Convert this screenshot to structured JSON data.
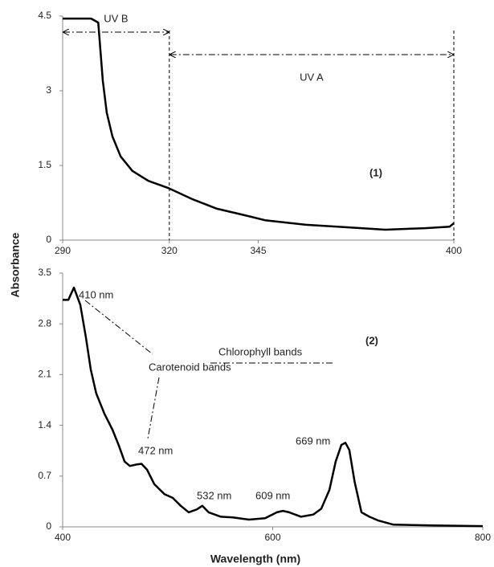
{
  "chart_data": [
    {
      "type": "line",
      "ylabel": "Absorbance",
      "color": "#000000",
      "x": [
        290,
        298,
        300,
        301.3,
        302.4,
        304,
        306.3,
        309.6,
        314.1,
        319.6,
        326.6,
        333.4,
        341.2,
        346.9,
        358.2,
        369.5,
        380.7,
        392,
        398.8,
        400
      ],
      "values": [
        4.45,
        4.45,
        4.37,
        3.2,
        2.56,
        2.08,
        1.68,
        1.39,
        1.19,
        1.05,
        0.82,
        0.63,
        0.5,
        0.4,
        0.31,
        0.26,
        0.21,
        0.24,
        0.27,
        0.34
      ],
      "xlim": [
        290,
        400
      ],
      "xticks": [
        290,
        320,
        345,
        400
      ],
      "ylim": [
        0,
        4.5
      ],
      "yticks": [
        0,
        1.5,
        3,
        4.5
      ],
      "regions": [
        {
          "label": "UV B",
          "from": 290,
          "to": 320
        },
        {
          "label": "UV A",
          "from": 320,
          "to": 400
        }
      ],
      "annotations": [
        "(1)"
      ]
    },
    {
      "type": "line",
      "xlabel": "Wavelength (nm)",
      "color": "#000000",
      "x": [
        400,
        405.4,
        410.7,
        416.8,
        422.2,
        426.8,
        432,
        439.8,
        447.4,
        453.5,
        459,
        464,
        470.4,
        475,
        480.3,
        487.2,
        497,
        504.8,
        512.4,
        520,
        527.7,
        533,
        539,
        550.7,
        562,
        577.4,
        592.7,
        604,
        609.6,
        615.7,
        627,
        638.6,
        646.3,
        654,
        660,
        665.4,
        669.2,
        673,
        678,
        684.5,
        692,
        700,
        715,
        753,
        800
      ],
      "values": [
        3.13,
        3.13,
        3.3,
        3.06,
        2.61,
        2.17,
        1.84,
        1.56,
        1.34,
        1.12,
        0.9,
        0.84,
        0.86,
        0.87,
        0.79,
        0.59,
        0.45,
        0.4,
        0.29,
        0.2,
        0.24,
        0.29,
        0.2,
        0.14,
        0.13,
        0.1,
        0.12,
        0.2,
        0.22,
        0.2,
        0.14,
        0.17,
        0.25,
        0.51,
        0.9,
        1.13,
        1.16,
        1.06,
        0.62,
        0.2,
        0.14,
        0.09,
        0.03,
        0.02,
        0.01
      ],
      "xlim": [
        400,
        800
      ],
      "xticks": [
        400,
        600,
        800
      ],
      "ylim": [
        0,
        3.5
      ],
      "yticks": [
        0,
        0.7,
        1.4,
        2.1,
        2.8,
        3.5
      ],
      "annotations": [
        "410 nm",
        "Carotenoid bands",
        "472 nm",
        "Chlorophyll bands",
        "669 nm",
        "532 nm",
        "609 nm",
        "(2)"
      ]
    }
  ]
}
